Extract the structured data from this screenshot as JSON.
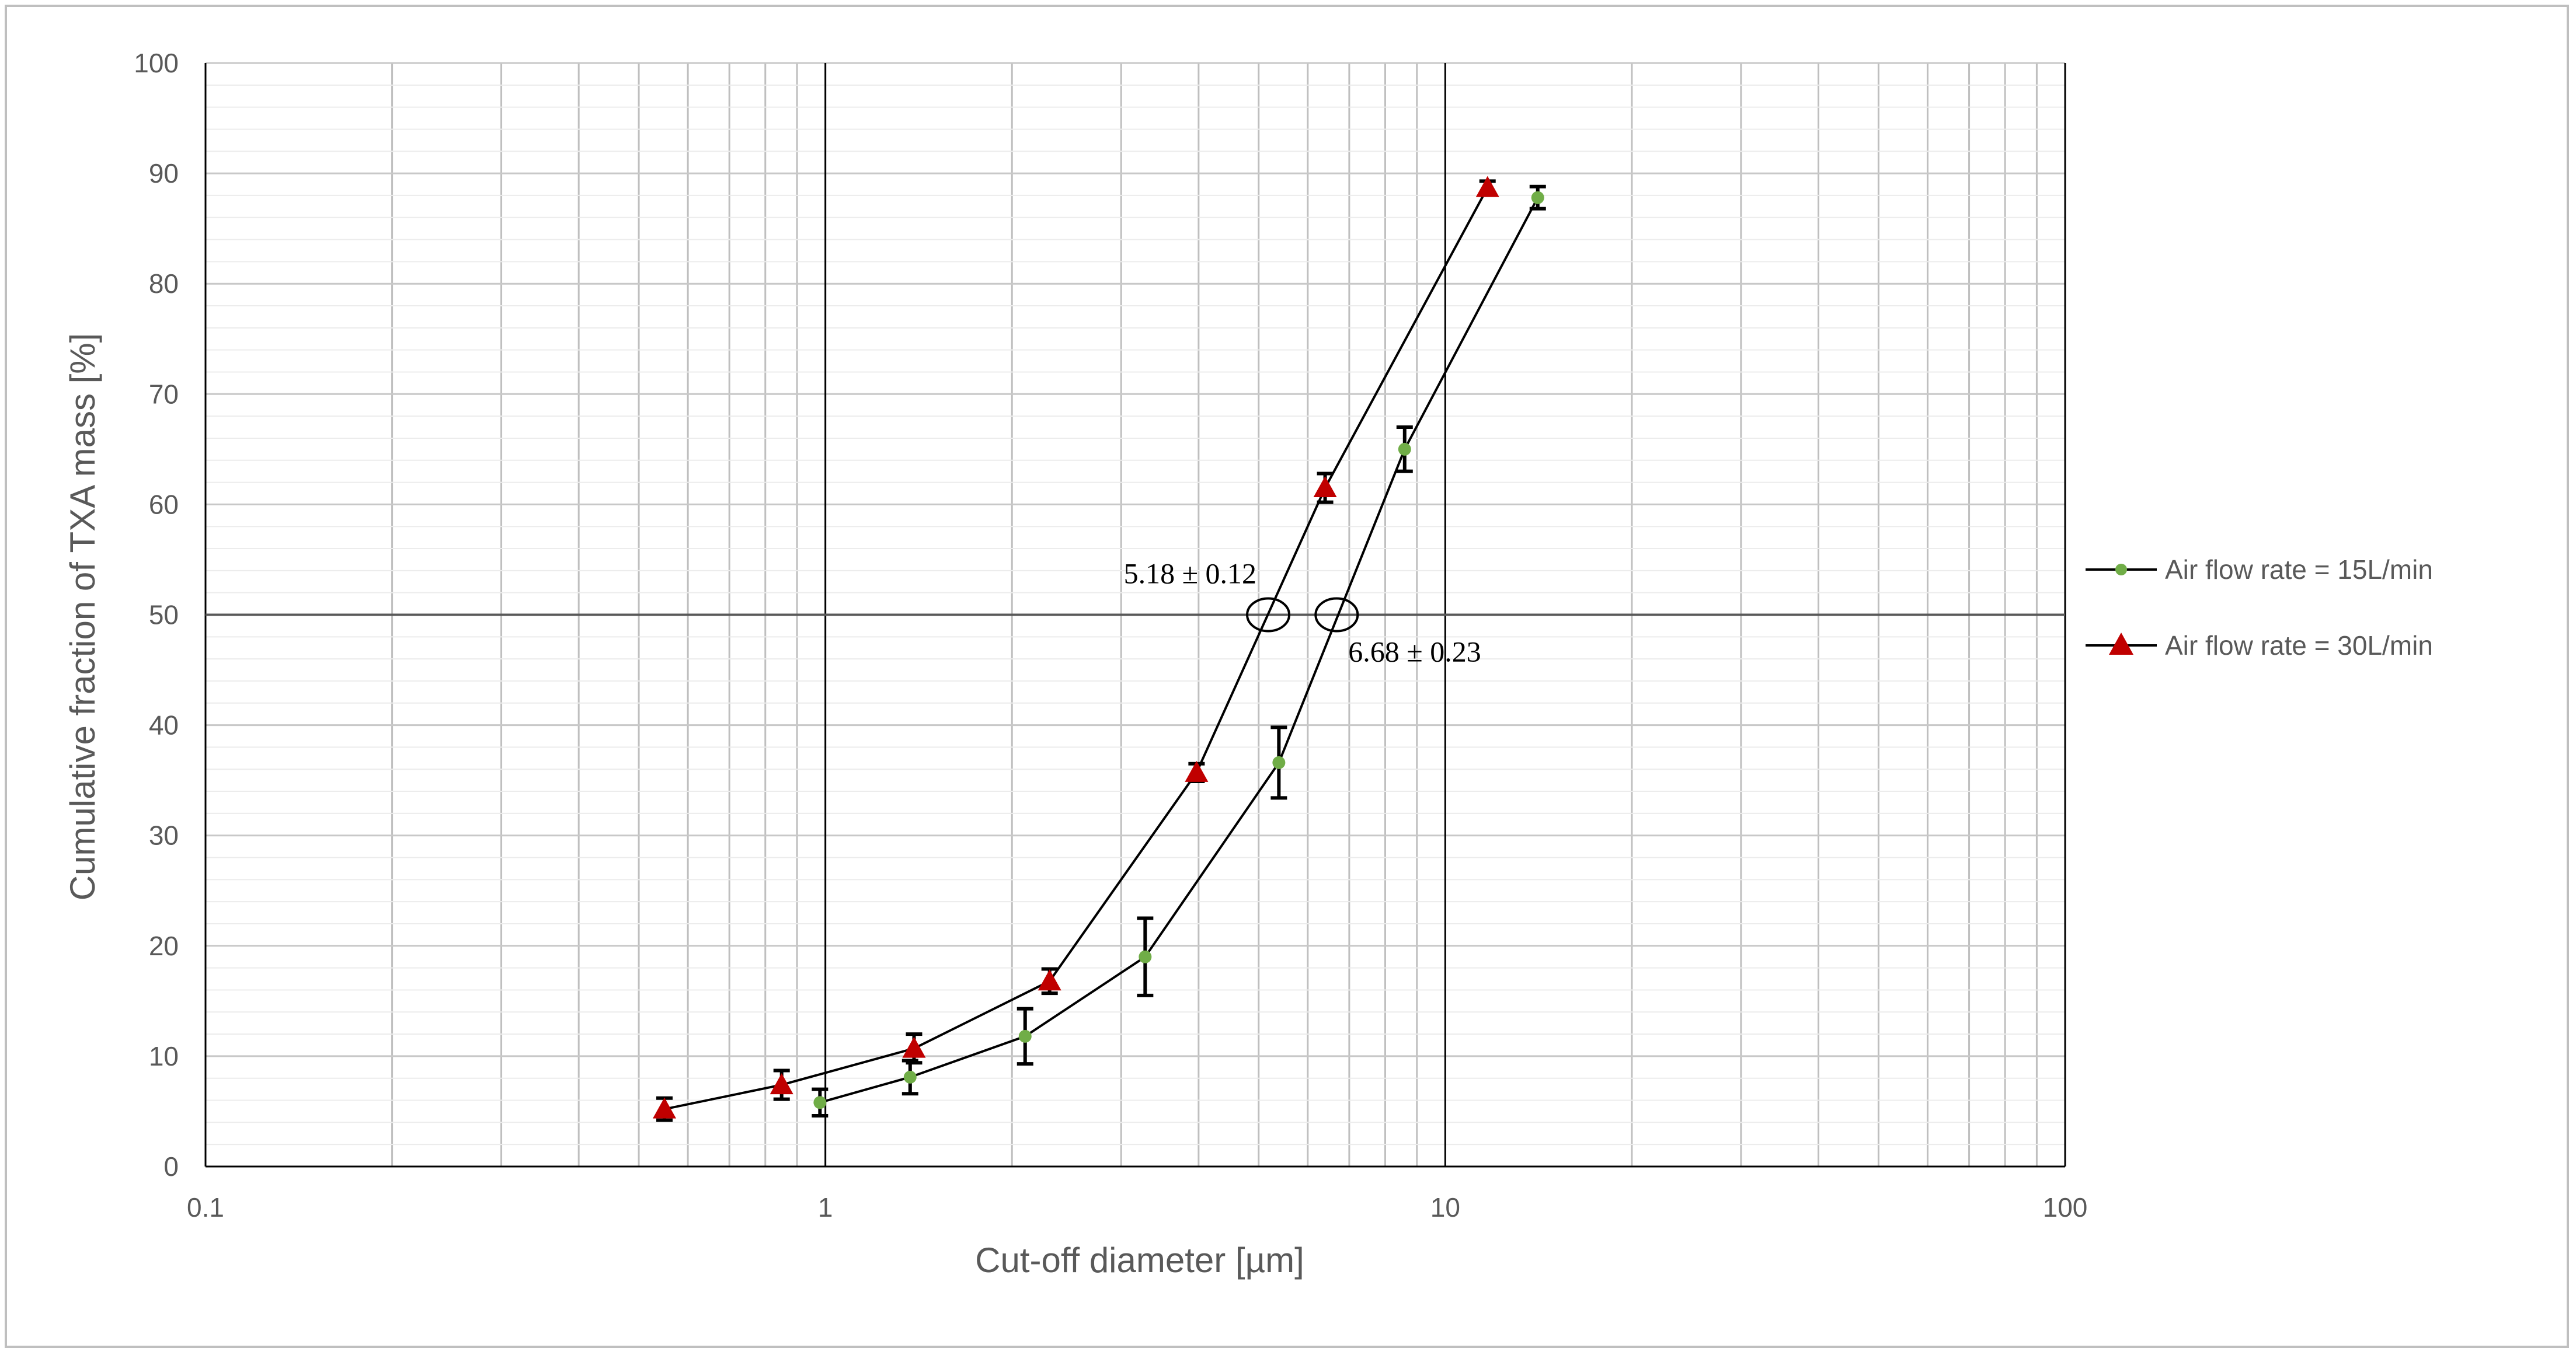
{
  "chart_data": {
    "type": "scatter",
    "xscale": "log",
    "xlim": [
      0.1,
      100
    ],
    "ylim": [
      0,
      100
    ],
    "xticks": [
      0.1,
      1,
      10,
      100
    ],
    "xtick_labels": [
      "0.1",
      "1",
      "10",
      "100"
    ],
    "yticks": [
      0,
      10,
      20,
      30,
      40,
      50,
      60,
      70,
      80,
      90,
      100
    ],
    "ytick_labels": [
      "0",
      "10",
      "20",
      "30",
      "40",
      "50",
      "60",
      "70",
      "80",
      "90",
      "100"
    ],
    "xlabel": "Cut-off diameter [µm]",
    "ylabel": "Cumulative fraction of TXA mass [%]",
    "grid": true,
    "legend_position": "right",
    "reference_line_y": 50,
    "series": [
      {
        "name": "Air flow rate = 15L/min",
        "marker": "circle",
        "color": "#70ad47",
        "x": [
          0.98,
          1.37,
          2.1,
          3.28,
          5.39,
          8.6,
          14.1
        ],
        "y": [
          5.8,
          8.1,
          11.8,
          19.0,
          36.6,
          65.0,
          87.8
        ],
        "err": [
          1.2,
          1.5,
          2.5,
          3.5,
          3.2,
          2.0,
          1.0
        ]
      },
      {
        "name": "Air flow rate = 30L/min",
        "marker": "triangle",
        "color": "#c00000",
        "x": [
          0.55,
          0.85,
          1.39,
          2.3,
          3.97,
          6.4,
          11.7
        ],
        "y": [
          5.2,
          7.4,
          10.7,
          16.8,
          35.7,
          61.5,
          88.7
        ],
        "err": [
          1.0,
          1.3,
          1.3,
          1.1,
          0.8,
          1.3,
          0.6
        ]
      }
    ],
    "annotations": [
      {
        "text": "5.18 ± 0.12",
        "x": 5.18,
        "y": 50
      },
      {
        "text": "6.68 ± 0.23",
        "x": 6.68,
        "y": 50
      }
    ]
  }
}
